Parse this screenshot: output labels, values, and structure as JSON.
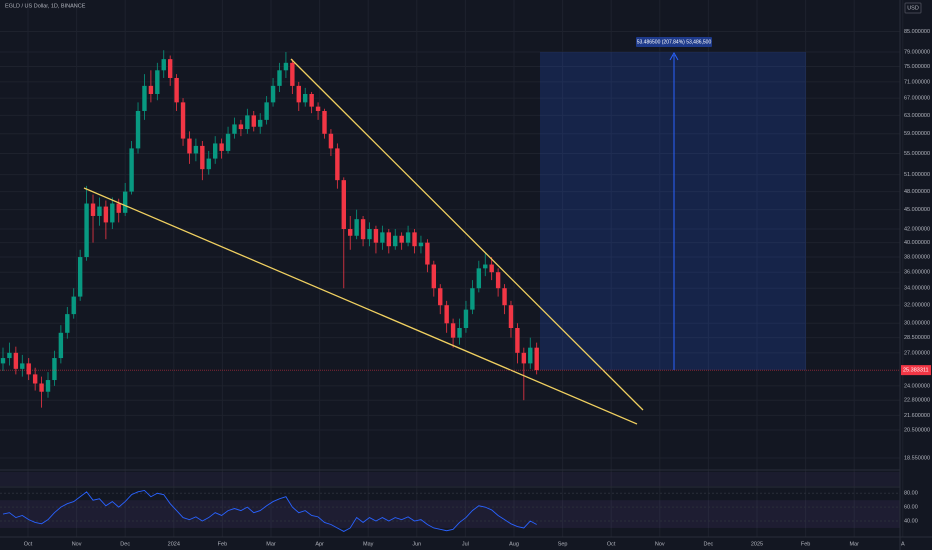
{
  "header": {
    "symbol": "EGLD / US Dollar, 1D, BINANCE",
    "currency": "USD"
  },
  "chart_data": {
    "type": "candlestick",
    "log_scale": true,
    "grid": true,
    "up_color": "#089981",
    "down_color": "#f23645",
    "open": [
      26,
      26.5,
      27,
      25.5,
      26,
      25,
      24.2,
      23.5,
      24.5,
      26.5,
      29,
      31,
      33,
      38,
      46,
      44,
      45.5,
      43,
      46,
      44.5,
      48,
      56,
      64,
      70,
      68,
      74,
      77,
      72,
      66,
      58,
      55,
      56.5,
      52,
      54,
      57,
      55.5,
      59,
      61,
      60,
      63,
      60.5,
      62,
      66,
      70,
      74,
      76,
      70,
      66,
      68,
      65,
      64,
      59,
      56,
      50,
      42,
      41,
      43.5,
      40.5,
      42,
      40,
      41.5,
      39.5,
      41,
      40,
      41.5,
      39.5,
      40,
      37,
      34,
      32,
      30,
      28.5,
      29.5,
      31.5,
      34,
      36.5,
      37,
      36,
      34,
      32,
      29.5,
      27,
      26,
      27.5
    ],
    "high": [
      27.5,
      28,
      27.6,
      26.8,
      26.5,
      25.6,
      24.8,
      25.2,
      27.2,
      29.8,
      31.8,
      34,
      39,
      49,
      47.5,
      47,
      46.5,
      47,
      46.8,
      49.5,
      57.5,
      66,
      73,
      74,
      76,
      79.5,
      78,
      73,
      67,
      59.5,
      58,
      57.5,
      55.5,
      58.5,
      58,
      60.5,
      62.5,
      62,
      64.5,
      64,
      63.5,
      67.5,
      72,
      76,
      79,
      77,
      71,
      69.5,
      68.5,
      66,
      64.5,
      60,
      57,
      50.5,
      44,
      45,
      44,
      43,
      42.5,
      42.5,
      42,
      42,
      41.5,
      42.5,
      42,
      41,
      40.5,
      37.5,
      34.5,
      32.5,
      30.5,
      30.5,
      32.5,
      35,
      37.5,
      38.5,
      38,
      36.5,
      34.5,
      32.5,
      30,
      27.5,
      28.5,
      28
    ],
    "low": [
      25.3,
      25.8,
      25,
      24.8,
      24.5,
      23.6,
      22.2,
      23,
      24,
      26,
      28.4,
      30.5,
      32.5,
      37.5,
      40,
      42.5,
      40.5,
      42,
      43,
      44,
      47.5,
      55,
      62,
      66,
      66.5,
      72,
      70,
      64,
      56.5,
      53,
      53.5,
      50,
      51,
      53,
      54,
      55,
      58,
      58.5,
      59,
      59.5,
      59,
      61,
      65,
      68.5,
      72,
      68,
      64,
      65,
      63.5,
      62,
      58,
      54.5,
      48.5,
      34,
      39,
      40.5,
      39.5,
      39.5,
      38.5,
      39,
      38.5,
      39,
      39,
      39.5,
      38.5,
      38.5,
      36,
      33,
      31,
      29,
      27.5,
      27.8,
      29,
      31,
      33.5,
      35.5,
      35,
      33,
      31,
      28.5,
      26,
      22.8,
      25.5,
      25
    ],
    "close": [
      26.5,
      27,
      25.5,
      26,
      25,
      24.2,
      23.5,
      24.5,
      26.5,
      29,
      31,
      33,
      38,
      46,
      44,
      45.5,
      43,
      46,
      44.5,
      48,
      56,
      64,
      70,
      68,
      74,
      77,
      72,
      66,
      58,
      55,
      56.5,
      52,
      54,
      57,
      55.5,
      59,
      61,
      60,
      63,
      60.5,
      62,
      66,
      70,
      74,
      76,
      70,
      66,
      68,
      65,
      64,
      59,
      56,
      50,
      42,
      41,
      43.5,
      40.5,
      42,
      40,
      41.5,
      39.5,
      41,
      40,
      41.5,
      39.5,
      40,
      37,
      34,
      32,
      30,
      28.5,
      29.5,
      31.5,
      34,
      36.5,
      37,
      36,
      34,
      32,
      29.5,
      27,
      26,
      27.5,
      25.383311
    ],
    "ylim": [
      17.9,
      95.1
    ],
    "yticks": [
      {
        "value": 85,
        "label": "85.000000"
      },
      {
        "value": 79,
        "label": "79.000000"
      },
      {
        "value": 75,
        "label": "75.000000"
      },
      {
        "value": 71,
        "label": "71.000000"
      },
      {
        "value": 67,
        "label": "67.000000"
      },
      {
        "value": 63,
        "label": "63.000000"
      },
      {
        "value": 59,
        "label": "59.000000"
      },
      {
        "value": 55,
        "label": "55.000000"
      },
      {
        "value": 51,
        "label": "51.000000"
      },
      {
        "value": 48,
        "label": "48.000000"
      },
      {
        "value": 45,
        "label": "45.000000"
      },
      {
        "value": 42,
        "label": "42.000000"
      },
      {
        "value": 40,
        "label": "40.000000"
      },
      {
        "value": 38,
        "label": "38.000000"
      },
      {
        "value": 36,
        "label": "36.000000"
      },
      {
        "value": 34,
        "label": "34.000000"
      },
      {
        "value": 32,
        "label": "32.000000"
      },
      {
        "value": 30,
        "label": "30.000000"
      },
      {
        "value": 28.5,
        "label": "28.500000"
      },
      {
        "value": 27,
        "label": "27.000000"
      },
      {
        "value": 24,
        "label": "24.000000"
      },
      {
        "value": 22.8,
        "label": "22.800000"
      },
      {
        "value": 21.6,
        "label": "21.600000"
      },
      {
        "value": 20.5,
        "label": "20.500000"
      },
      {
        "value": 18.55,
        "label": "18.550000"
      }
    ],
    "current_price": 25.383311,
    "measurement_label": "53.486500 (207.84%) 53,486,500",
    "time_labels": [
      "Oct",
      "Nov",
      "Dec",
      "2024",
      "Feb",
      "Mar",
      "Apr",
      "May",
      "Jun",
      "Jul",
      "Aug",
      "Sep",
      "Oct",
      "Nov",
      "Dec",
      "2025",
      "Feb",
      "Mar",
      "A"
    ],
    "rsi": {
      "color": "#2962ff",
      "ylim": [
        17,
        89
      ],
      "yticks": [
        {
          "value": 80,
          "label": "80.00"
        },
        {
          "value": 60,
          "label": "60.00"
        },
        {
          "value": 40,
          "label": "40.00"
        }
      ],
      "values": [
        50,
        52,
        45,
        48,
        42,
        38,
        36,
        42,
        52,
        60,
        65,
        68,
        75,
        82,
        70,
        72,
        62,
        68,
        60,
        68,
        78,
        82,
        84,
        75,
        80,
        78,
        65,
        55,
        45,
        42,
        46,
        40,
        45,
        52,
        48,
        55,
        58,
        55,
        60,
        52,
        55,
        62,
        68,
        72,
        75,
        60,
        52,
        55,
        48,
        46,
        38,
        35,
        30,
        25,
        30,
        45,
        38,
        45,
        40,
        45,
        40,
        45,
        42,
        46,
        40,
        42,
        35,
        30,
        28,
        26,
        28,
        38,
        45,
        55,
        62,
        60,
        56,
        48,
        42,
        36,
        32,
        30,
        40,
        35
      ]
    }
  }
}
